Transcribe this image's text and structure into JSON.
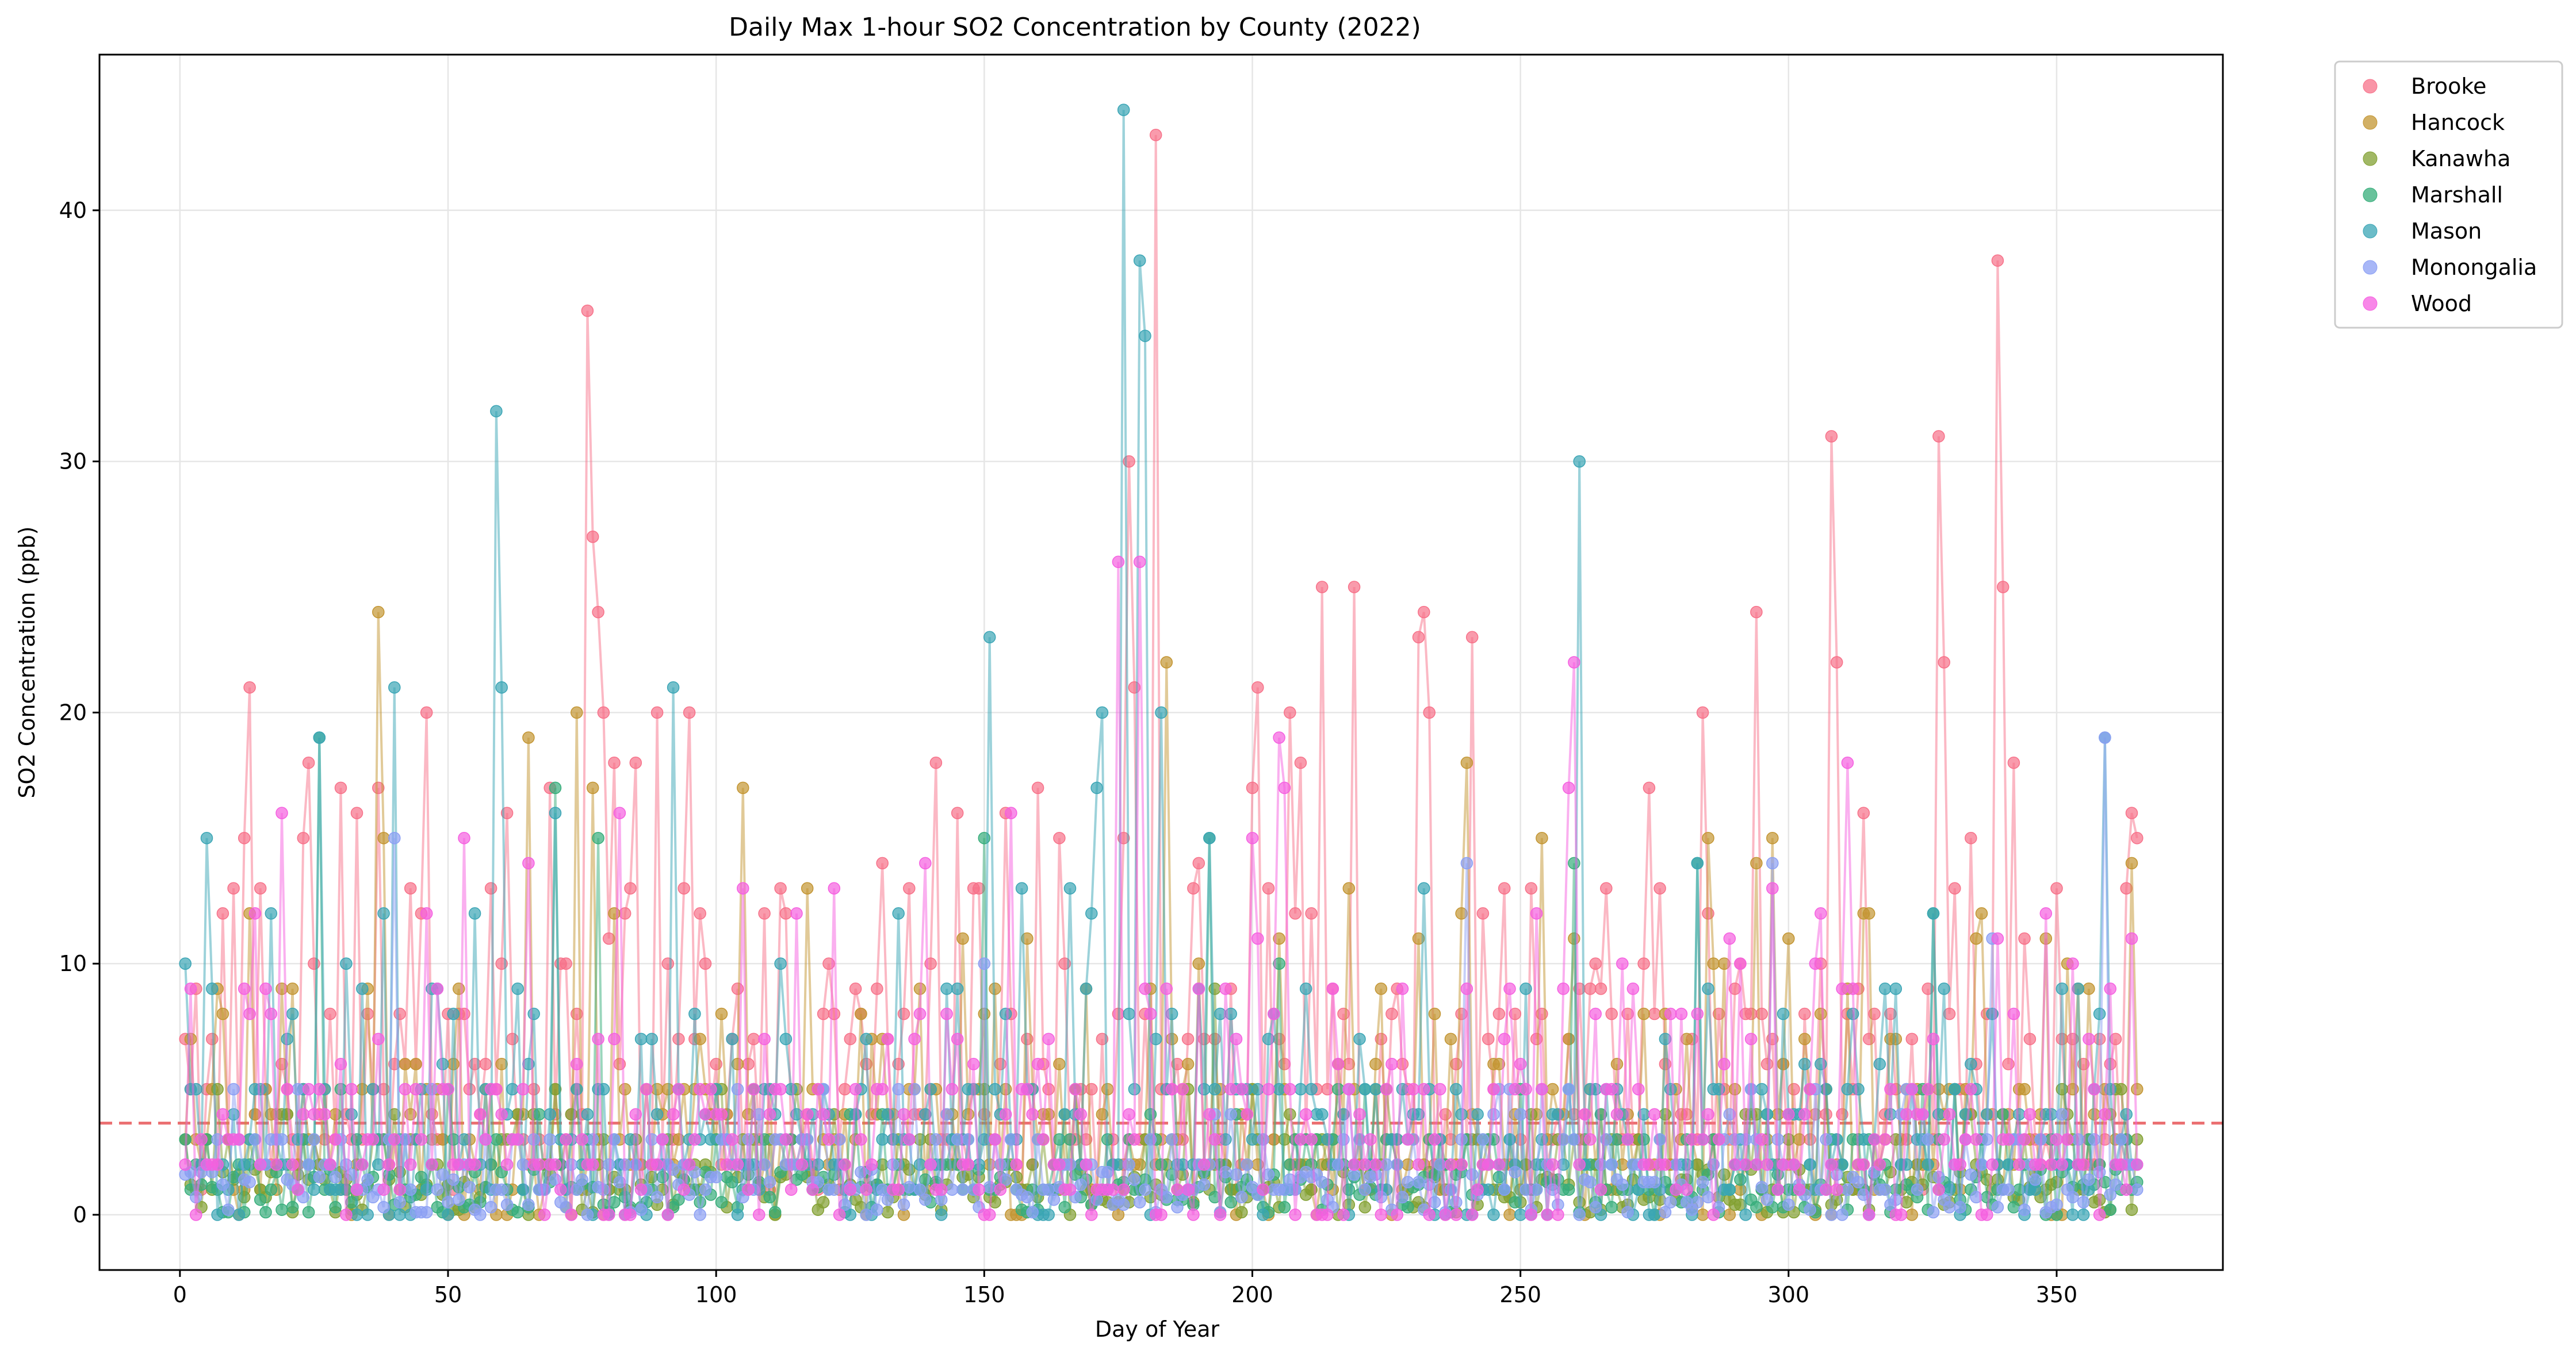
{
  "chart_data": {
    "type": "scatter",
    "title": "Daily Max 1-hour SO2 Concentration by County (2022)",
    "xlabel": "Day of Year",
    "ylabel": "SO2 Concentration (ppb)",
    "xlim": [
      -15,
      381
    ],
    "ylim": [
      -2.2,
      46.2
    ],
    "x_ticks": [
      0,
      50,
      100,
      150,
      200,
      250,
      300,
      350
    ],
    "y_ticks": [
      0,
      10,
      20,
      30,
      40
    ],
    "grid": true,
    "legend_position": "outside top-right",
    "reference_line": {
      "y": 3.65,
      "color": "#e8585a",
      "style": "dashed"
    },
    "series": [
      {
        "name": "Brooke",
        "color": "#f77189",
        "noise": "high",
        "peaks": [
          [
            1,
            7
          ],
          [
            12,
            15
          ],
          [
            13,
            21
          ],
          [
            23,
            15
          ],
          [
            30,
            17
          ],
          [
            33,
            16
          ],
          [
            37,
            17
          ],
          [
            46,
            20
          ],
          [
            58,
            13
          ],
          [
            60,
            10
          ],
          [
            76,
            36
          ],
          [
            77,
            27
          ],
          [
            78,
            24
          ],
          [
            79,
            20
          ],
          [
            81,
            18
          ],
          [
            89,
            20
          ],
          [
            95,
            20
          ],
          [
            145,
            16
          ],
          [
            149,
            13
          ],
          [
            160,
            17
          ],
          [
            164,
            15
          ],
          [
            176,
            15
          ],
          [
            177,
            30
          ],
          [
            178,
            21
          ],
          [
            182,
            43
          ],
          [
            201,
            21
          ],
          [
            207,
            20
          ],
          [
            213,
            25
          ],
          [
            219,
            25
          ],
          [
            231,
            23
          ],
          [
            232,
            24
          ],
          [
            233,
            20
          ],
          [
            241,
            23
          ],
          [
            284,
            20
          ],
          [
            294,
            24
          ],
          [
            308,
            31
          ],
          [
            309,
            22
          ],
          [
            314,
            16
          ],
          [
            328,
            31
          ],
          [
            329,
            22
          ],
          [
            339,
            38
          ],
          [
            340,
            25
          ],
          [
            364,
            16
          ]
        ]
      },
      {
        "name": "Hancock",
        "color": "#c39532",
        "noise": "mid",
        "peaks": [
          [
            13,
            12
          ],
          [
            37,
            24
          ],
          [
            38,
            15
          ],
          [
            65,
            19
          ],
          [
            74,
            20
          ],
          [
            77,
            17
          ],
          [
            105,
            17
          ],
          [
            117,
            13
          ],
          [
            184,
            22
          ],
          [
            218,
            13
          ],
          [
            240,
            18
          ],
          [
            254,
            15
          ],
          [
            285,
            15
          ],
          [
            294,
            14
          ],
          [
            297,
            15
          ],
          [
            314,
            12
          ],
          [
            336,
            12
          ],
          [
            364,
            14
          ]
        ]
      },
      {
        "name": "Kanawha",
        "color": "#82a031",
        "noise": "low",
        "peaks": [
          [
            40,
            4
          ],
          [
            70,
            5
          ],
          [
            110,
            3
          ],
          [
            193,
            9
          ],
          [
            240,
            3
          ],
          [
            300,
            3
          ],
          [
            340,
            4
          ]
        ]
      },
      {
        "name": "Marshall",
        "color": "#36ad7a",
        "noise": "low",
        "peaks": [
          [
            26,
            19
          ],
          [
            70,
            17
          ],
          [
            78,
            15
          ],
          [
            150,
            15
          ],
          [
            192,
            15
          ],
          [
            205,
            10
          ],
          [
            260,
            14
          ],
          [
            283,
            14
          ],
          [
            327,
            12
          ]
        ]
      },
      {
        "name": "Mason",
        "color": "#3aa5b5",
        "noise": "mid",
        "peaks": [
          [
            5,
            15
          ],
          [
            26,
            19
          ],
          [
            40,
            21
          ],
          [
            59,
            32
          ],
          [
            60,
            21
          ],
          [
            70,
            16
          ],
          [
            92,
            21
          ],
          [
            134,
            12
          ],
          [
            151,
            23
          ],
          [
            157,
            13
          ],
          [
            166,
            13
          ],
          [
            171,
            17
          ],
          [
            172,
            20
          ],
          [
            176,
            44
          ],
          [
            179,
            38
          ],
          [
            180,
            35
          ],
          [
            183,
            20
          ],
          [
            192,
            15
          ],
          [
            232,
            13
          ],
          [
            261,
            30
          ],
          [
            283,
            14
          ],
          [
            327,
            12
          ],
          [
            359,
            19
          ]
        ]
      },
      {
        "name": "Monongalia",
        "color": "#8b9ff4",
        "noise": "low",
        "peaks": [
          [
            40,
            15
          ],
          [
            150,
            10
          ],
          [
            240,
            14
          ],
          [
            297,
            14
          ],
          [
            338,
            11
          ],
          [
            359,
            19
          ]
        ]
      },
      {
        "name": "Wood",
        "color": "#f55fe0",
        "noise": "mid",
        "peaks": [
          [
            19,
            16
          ],
          [
            53,
            15
          ],
          [
            65,
            14
          ],
          [
            82,
            16
          ],
          [
            105,
            13
          ],
          [
            115,
            12
          ],
          [
            122,
            13
          ],
          [
            139,
            14
          ],
          [
            155,
            16
          ],
          [
            175,
            26
          ],
          [
            179,
            26
          ],
          [
            200,
            15
          ],
          [
            205,
            19
          ],
          [
            206,
            17
          ],
          [
            259,
            17
          ],
          [
            260,
            22
          ],
          [
            297,
            13
          ],
          [
            311,
            18
          ],
          [
            348,
            12
          ]
        ]
      }
    ]
  }
}
